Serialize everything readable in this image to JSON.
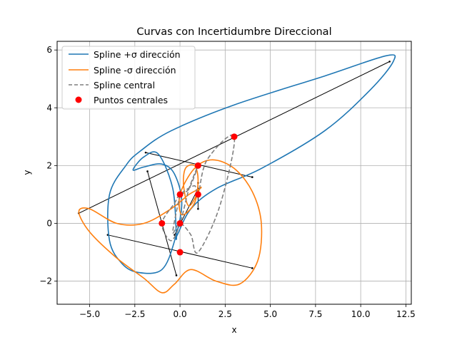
{
  "chart_data": {
    "type": "line",
    "title": "Curvas con Incertidumbre Direccional",
    "xlabel": "x",
    "ylabel": "y",
    "xlim": [
      -6.8,
      12.8
    ],
    "ylim": [
      -2.8,
      6.3
    ],
    "xticks": [
      -5.0,
      -2.5,
      0.0,
      2.5,
      5.0,
      7.5,
      10.0,
      12.5
    ],
    "xtick_labels": [
      "−5.0",
      "−2.5",
      "0.0",
      "2.5",
      "5.0",
      "7.5",
      "10.0",
      "12.5"
    ],
    "yticks": [
      -2,
      0,
      2,
      4,
      6
    ],
    "ytick_labels": [
      "−2",
      "0",
      "2",
      "4",
      "6"
    ],
    "grid": true,
    "legend_position": "upper-left",
    "legend": [
      {
        "label": "Spline +σ dirección",
        "color": "#1f77b4",
        "style": "solid"
      },
      {
        "label": "Spline -σ dirección",
        "color": "#ff7f0e",
        "style": "solid"
      },
      {
        "label": "Spline central",
        "color": "#7f7f7f",
        "style": "dashed"
      },
      {
        "label": "Puntos centrales",
        "color": "#ff0000",
        "style": "marker"
      }
    ],
    "series": [
      {
        "name": "Spline +σ dirección",
        "color": "#1f77b4",
        "x": [
          -0.15,
          0.6,
          2.0,
          4.5,
          8.0,
          10.5,
          11.8,
          11.4,
          8.0,
          3.0,
          -0.5,
          -2.2,
          -3.0,
          -3.9,
          -3.9,
          -3.2,
          -2.3,
          -1.0,
          -0.3,
          0.1,
          -0.3,
          -1.0,
          -2.0,
          -2.6,
          -2.0,
          -1.2,
          -0.4,
          -0.2
        ],
        "y": [
          -0.4,
          0.5,
          1.2,
          1.9,
          3.2,
          4.6,
          5.6,
          5.8,
          5.1,
          4.1,
          3.2,
          2.5,
          2.0,
          1.0,
          -0.6,
          -1.4,
          -1.7,
          -1.6,
          -0.6,
          0.7,
          1.7,
          2.05,
          1.95,
          1.85,
          2.3,
          2.4,
          1.2,
          -0.4
        ]
      },
      {
        "name": "Spline -σ dirección",
        "color": "#ff7f0e",
        "x": [
          1.1,
          0.5,
          -0.5,
          -2.0,
          -3.5,
          -5.0,
          -5.6,
          -5.0,
          -3.5,
          -2.0,
          -1.0,
          -0.3,
          0.6,
          2.0,
          3.3,
          4.3,
          4.5,
          4.0,
          3.0,
          1.8,
          0.8,
          0.0,
          0.1,
          0.8,
          1.0,
          0.8,
          0.3,
          0.2,
          0.5,
          1.1
        ],
        "y": [
          1.2,
          1.0,
          0.5,
          0.0,
          0.0,
          0.5,
          0.4,
          -0.3,
          -1.2,
          -1.9,
          -2.4,
          -2.1,
          -1.6,
          -2.0,
          -2.1,
          -1.3,
          0.0,
          1.1,
          1.9,
          2.2,
          1.9,
          1.0,
          0.3,
          0.7,
          1.5,
          2.0,
          1.9,
          1.3,
          0.6,
          1.2
        ]
      },
      {
        "name": "Spline central",
        "color": "#7f7f7f",
        "x": [
          0,
          0.5,
          1.0,
          0.5,
          0,
          -0.5,
          -1.0,
          -0.3,
          0,
          0.8,
          1.0,
          1.5,
          3.0,
          2.2,
          1.0,
          0.6,
          0,
          -0.4,
          0
        ],
        "y": [
          1,
          1.2,
          2.0,
          1.2,
          0,
          -0.6,
          0,
          0.7,
          1,
          1.3,
          1,
          2.2,
          3,
          0.6,
          -1,
          -0.4,
          0,
          -0.3,
          1
        ]
      }
    ],
    "points": {
      "name": "Puntos centrales",
      "color": "#ff0000",
      "x": [
        0,
        1,
        3,
        1,
        0,
        -1,
        0
      ],
      "y": [
        1,
        2,
        3,
        1,
        0,
        0,
        -1
      ]
    },
    "uncertainty_segments": [
      {
        "x": [
          -5.6,
          11.6
        ],
        "y": [
          0.35,
          5.6
        ]
      },
      {
        "x": [
          -1.9,
          4.0
        ],
        "y": [
          2.45,
          1.6
        ]
      },
      {
        "x": [
          -1.8,
          -0.2
        ],
        "y": [
          1.8,
          -1.8
        ]
      },
      {
        "x": [
          -4.0,
          4.0
        ],
        "y": [
          -0.4,
          -1.55
        ]
      },
      {
        "x": [
          -0.3,
          1.0
        ],
        "y": [
          -0.4,
          1.2
        ]
      },
      {
        "x": [
          1.0,
          1.0
        ],
        "y": [
          0.5,
          1.4
        ]
      }
    ]
  }
}
